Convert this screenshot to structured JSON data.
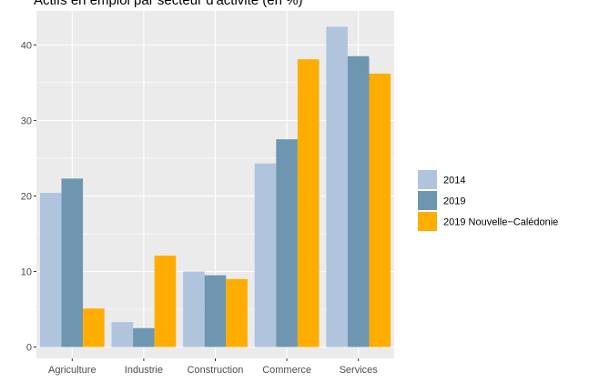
{
  "chart_data": {
    "type": "bar",
    "title": "Actifs en emploi par secteur d'activité (en %)",
    "categories": [
      "Agriculture",
      "Industrie",
      "Construction",
      "Commerce",
      "Services"
    ],
    "series": [
      {
        "name": "2014",
        "values": [
          20.4,
          3.3,
          10.0,
          24.3,
          42.4
        ],
        "color": "#b0c4de"
      },
      {
        "name": "2019",
        "values": [
          22.3,
          2.5,
          9.5,
          27.5,
          38.5
        ],
        "color": "#6e96b0"
      },
      {
        "name": "2019 Nouvelle−Calédonie",
        "values": [
          5.1,
          12.1,
          9.0,
          38.1,
          36.2
        ],
        "color": "#ffad00"
      }
    ],
    "y_ticks": [
      0,
      10,
      20,
      30,
      40
    ],
    "ylim": [
      -1.5,
      44.5
    ],
    "grid": true,
    "panel_background": "#ebebeb",
    "legend_position": "right"
  }
}
